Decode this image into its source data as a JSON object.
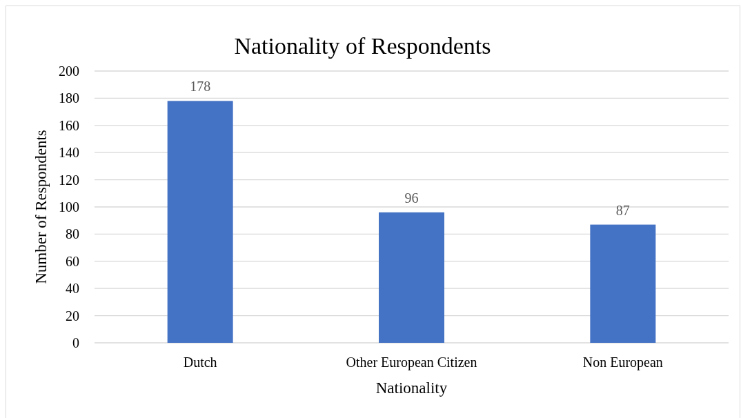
{
  "chart_data": {
    "type": "bar",
    "title": "Nationality of Respondents",
    "xlabel": "Nationality",
    "ylabel": "Number of Respondents",
    "categories": [
      "Dutch",
      "Other European Citizen",
      "Non European"
    ],
    "values": [
      178,
      96,
      87
    ],
    "color": "#4472c4",
    "ylim": [
      0,
      200
    ],
    "yticks": [
      0,
      20,
      40,
      60,
      80,
      100,
      120,
      140,
      160,
      180,
      200
    ],
    "grid": "y",
    "data_labels": true
  }
}
